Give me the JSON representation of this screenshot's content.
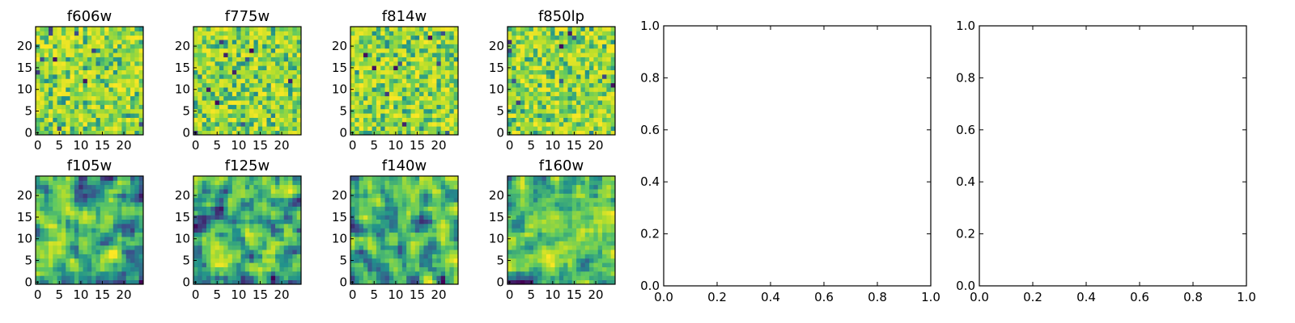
{
  "chart_data": [
    {
      "type": "heatmap",
      "title": "f606w",
      "xticks": [
        "0",
        "5",
        "10",
        "15",
        "20"
      ],
      "yticks": [
        "0",
        "5",
        "10",
        "15",
        "20"
      ],
      "xlim": [
        -0.5,
        24.5
      ],
      "ylim": [
        -0.5,
        24.5
      ],
      "grid_size": 25,
      "colormap": "viridis",
      "seed": 11
    },
    {
      "type": "heatmap",
      "title": "f775w",
      "xticks": [
        "0",
        "5",
        "10",
        "15",
        "20"
      ],
      "yticks": [
        "0",
        "5",
        "10",
        "15",
        "20"
      ],
      "xlim": [
        -0.5,
        24.5
      ],
      "ylim": [
        -0.5,
        24.5
      ],
      "grid_size": 25,
      "colormap": "viridis",
      "seed": 23
    },
    {
      "type": "heatmap",
      "title": "f814w",
      "xticks": [
        "0",
        "5",
        "10",
        "15",
        "20"
      ],
      "yticks": [
        "0",
        "5",
        "10",
        "15",
        "20"
      ],
      "xlim": [
        -0.5,
        24.5
      ],
      "ylim": [
        -0.5,
        24.5
      ],
      "grid_size": 25,
      "colormap": "viridis",
      "seed": 37
    },
    {
      "type": "heatmap",
      "title": "f850lp",
      "xticks": [
        "0",
        "5",
        "10",
        "15",
        "20"
      ],
      "yticks": [
        "0",
        "5",
        "10",
        "15",
        "20"
      ],
      "xlim": [
        -0.5,
        24.5
      ],
      "ylim": [
        -0.5,
        24.5
      ],
      "grid_size": 25,
      "colormap": "viridis",
      "seed": 41
    },
    {
      "type": "heatmap",
      "title": "f105w",
      "xticks": [
        "0",
        "5",
        "10",
        "15",
        "20"
      ],
      "yticks": [
        "0",
        "5",
        "10",
        "15",
        "20"
      ],
      "xlim": [
        -0.5,
        24.5
      ],
      "ylim": [
        -0.5,
        24.5
      ],
      "grid_size": 25,
      "colormap": "viridis",
      "seed": 53
    },
    {
      "type": "heatmap",
      "title": "f125w",
      "xticks": [
        "0",
        "5",
        "10",
        "15",
        "20"
      ],
      "yticks": [
        "0",
        "5",
        "10",
        "15",
        "20"
      ],
      "xlim": [
        -0.5,
        24.5
      ],
      "ylim": [
        -0.5,
        24.5
      ],
      "grid_size": 25,
      "colormap": "viridis",
      "seed": 67
    },
    {
      "type": "heatmap",
      "title": "f140w",
      "xticks": [
        "0",
        "5",
        "10",
        "15",
        "20"
      ],
      "yticks": [
        "0",
        "5",
        "10",
        "15",
        "20"
      ],
      "xlim": [
        -0.5,
        24.5
      ],
      "ylim": [
        -0.5,
        24.5
      ],
      "grid_size": 25,
      "colormap": "viridis",
      "seed": 79
    },
    {
      "type": "heatmap",
      "title": "f160w",
      "xticks": [
        "0",
        "5",
        "10",
        "15",
        "20"
      ],
      "yticks": [
        "0",
        "5",
        "10",
        "15",
        "20"
      ],
      "xlim": [
        -0.5,
        24.5
      ],
      "ylim": [
        -0.5,
        24.5
      ],
      "grid_size": 25,
      "colormap": "viridis",
      "seed": 97
    },
    {
      "type": "line",
      "title": "",
      "series": [],
      "xlim": [
        0.0,
        1.0
      ],
      "ylim": [
        0.0,
        1.0
      ],
      "xticks": [
        "0.0",
        "0.2",
        "0.4",
        "0.6",
        "0.8",
        "1.0"
      ],
      "yticks": [
        "0.0",
        "0.2",
        "0.4",
        "0.6",
        "0.8",
        "1.0"
      ]
    },
    {
      "type": "line",
      "title": "",
      "series": [],
      "xlim": [
        0.0,
        1.0
      ],
      "ylim": [
        0.0,
        1.0
      ],
      "xticks": [
        "0.0",
        "0.2",
        "0.4",
        "0.6",
        "0.8",
        "1.0"
      ],
      "yticks": [
        "0.0",
        "0.2",
        "0.4",
        "0.6",
        "0.8",
        "1.0"
      ]
    }
  ],
  "colormap_colors": [
    "#440154",
    "#3b528b",
    "#21918c",
    "#5ec962",
    "#b5de2b",
    "#fde725"
  ]
}
